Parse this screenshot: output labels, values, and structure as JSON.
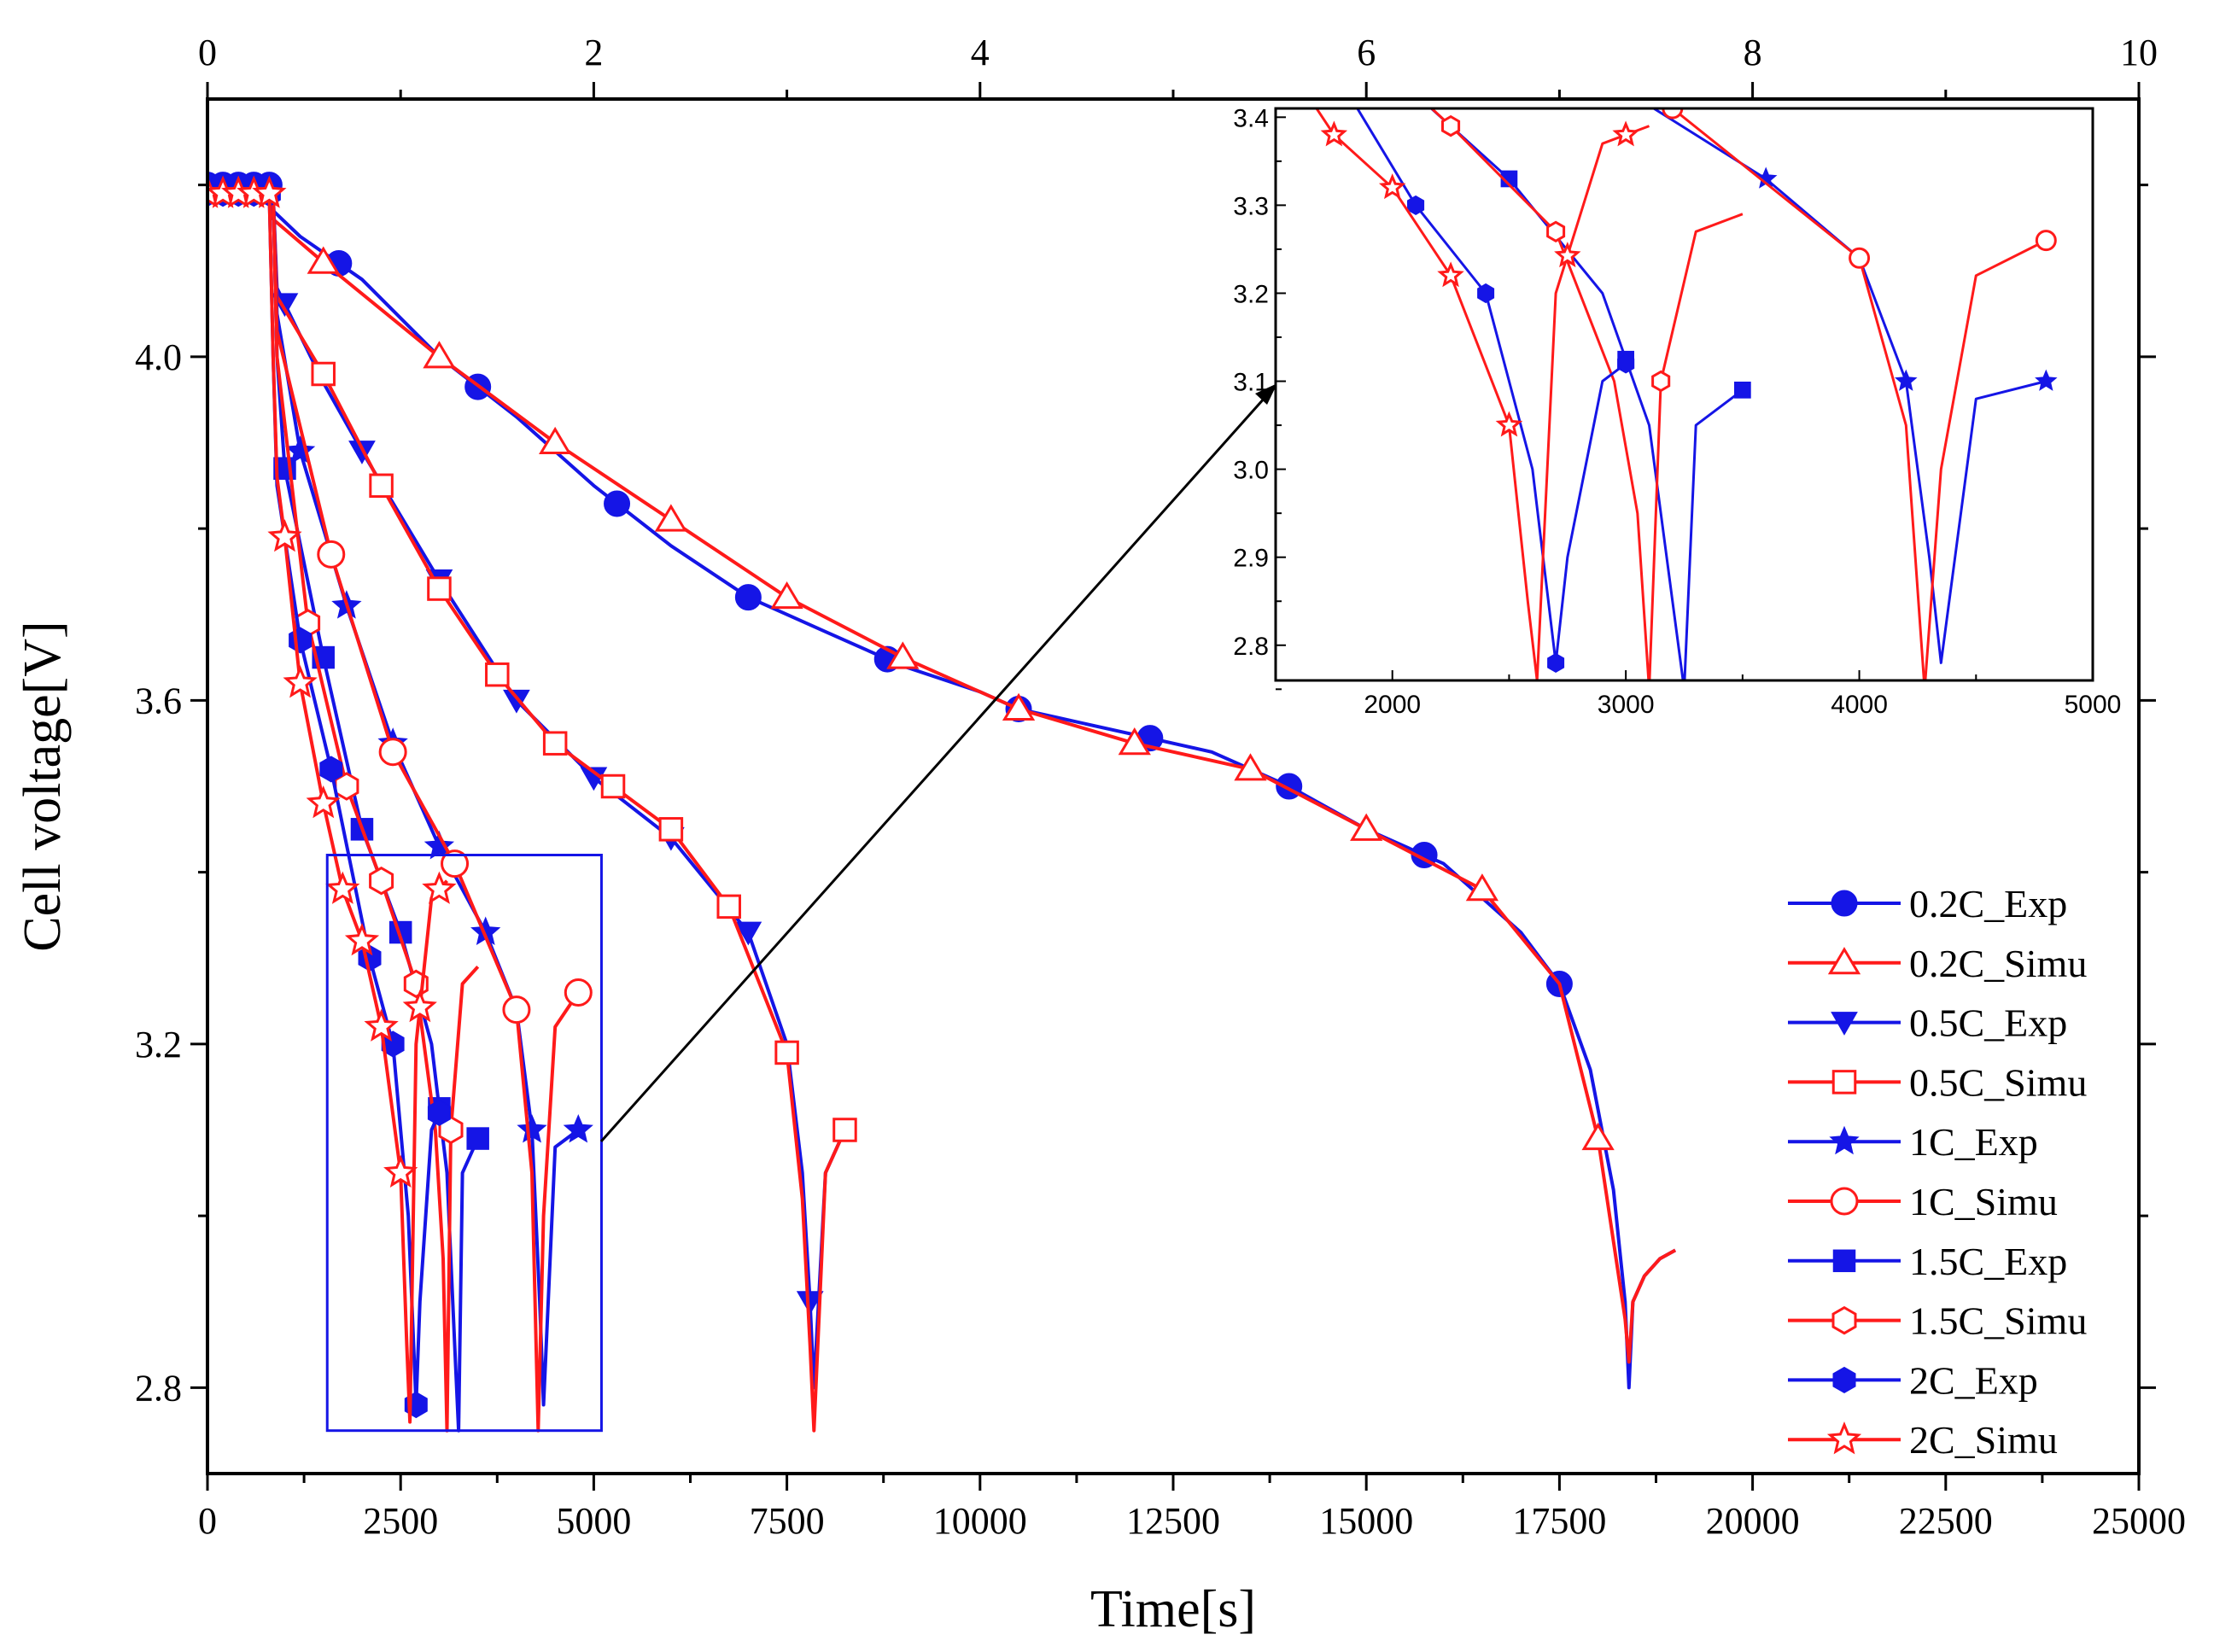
{
  "chart_data": {
    "type": "line",
    "title": "",
    "xlabel": "Time[s]",
    "ylabel": "Cell voltage[V]",
    "xlim": [
      0,
      25000
    ],
    "ylim": [
      2.7,
      4.3
    ],
    "x_ticks": [
      0,
      2500,
      5000,
      7500,
      10000,
      12500,
      15000,
      17500,
      20000,
      22500,
      25000
    ],
    "y_ticks": [
      2.8,
      3.2,
      3.6,
      4.0
    ],
    "top_axis": {
      "range": [
        0,
        10
      ],
      "ticks": [
        0,
        2,
        4,
        6,
        8,
        10
      ]
    },
    "legend_position": "right",
    "series": [
      {
        "name": "0.2C_Exp",
        "color": "#1515e6",
        "marker": "filled-circle",
        "x": [
          0,
          200,
          400,
          600,
          800,
          850,
          1200,
          2000,
          3000,
          4000,
          5000,
          6000,
          7000,
          8000,
          9000,
          10000,
          10500,
          11000,
          12000,
          13000,
          14000,
          15000,
          16000,
          16500,
          17000,
          17500,
          17900,
          18200,
          18350,
          18400,
          18450,
          18600,
          18800,
          19000
        ],
        "y": [
          4.2,
          4.2,
          4.2,
          4.2,
          4.2,
          4.17,
          4.14,
          4.09,
          4.0,
          3.93,
          3.85,
          3.78,
          3.72,
          3.68,
          3.64,
          3.61,
          3.59,
          3.58,
          3.56,
          3.54,
          3.5,
          3.45,
          3.41,
          3.37,
          3.33,
          3.27,
          3.17,
          3.03,
          2.9,
          2.8,
          2.9,
          2.93,
          2.95,
          2.96
        ],
        "markers_x": [
          0,
          200,
          400,
          600,
          800,
          1700,
          3500,
          5300,
          7000,
          8800,
          10500,
          12200,
          14000,
          15750,
          17500
        ]
      },
      {
        "name": "0.2C_Simu",
        "color": "#ff1a1a",
        "marker": "open-triangle",
        "x": [
          0,
          200,
          400,
          600,
          800,
          850,
          1500,
          3000,
          4500,
          6000,
          7500,
          9000,
          10500,
          12000,
          13500,
          15000,
          16500,
          17500,
          18000,
          18200,
          18350,
          18400,
          18450,
          18600,
          18800,
          19000
        ],
        "y": [
          4.19,
          4.19,
          4.19,
          4.19,
          4.19,
          4.16,
          4.11,
          4.0,
          3.9,
          3.81,
          3.72,
          3.65,
          3.59,
          3.55,
          3.52,
          3.45,
          3.38,
          3.27,
          3.09,
          2.97,
          2.88,
          2.83,
          2.9,
          2.93,
          2.95,
          2.96
        ],
        "markers_x": [
          1500,
          3000,
          4500,
          6000,
          7500,
          9000,
          10500,
          12000,
          13500,
          15000,
          16500,
          18000
        ]
      },
      {
        "name": "0.5C_Exp",
        "color": "#1515e6",
        "marker": "filled-triangle-down",
        "x": [
          850,
          900,
          1500,
          2000,
          3000,
          3500,
          4000,
          5000,
          6000,
          7000,
          7500,
          7700,
          7800,
          7850,
          8000,
          8200
        ],
        "y": [
          4.19,
          4.08,
          3.97,
          3.89,
          3.74,
          3.67,
          3.6,
          3.51,
          3.44,
          3.33,
          3.2,
          3.05,
          2.9,
          2.8,
          3.05,
          3.09
        ],
        "markers_x": [
          1000,
          2000,
          3000,
          4000,
          5000,
          6000,
          7000,
          7800
        ]
      },
      {
        "name": "0.5C_Simu",
        "color": "#ff1a1a",
        "marker": "open-square",
        "x": [
          850,
          900,
          1500,
          2250,
          3000,
          3750,
          4500,
          5250,
          6000,
          6750,
          7500,
          7700,
          7800,
          7850,
          8000,
          8250
        ],
        "y": [
          4.19,
          4.07,
          3.98,
          3.85,
          3.73,
          3.63,
          3.55,
          3.5,
          3.45,
          3.36,
          3.19,
          3.02,
          2.85,
          2.75,
          3.05,
          3.1
        ],
        "markers_x": [
          1500,
          2250,
          3000,
          3750,
          4500,
          5250,
          6000,
          6750,
          7500,
          8250
        ]
      },
      {
        "name": "1C_Exp",
        "color": "#1515e6",
        "marker": "filled-star",
        "x": [
          850,
          900,
          1200,
          1800,
          2400,
          3000,
          3600,
          4000,
          4200,
          4300,
          4350,
          4500,
          4800
        ],
        "y": [
          4.19,
          4.05,
          3.89,
          3.71,
          3.55,
          3.43,
          3.33,
          3.24,
          3.1,
          2.9,
          2.78,
          3.08,
          3.1
        ],
        "markers_x": [
          1200,
          1800,
          2400,
          3000,
          3600,
          4200,
          4800
        ]
      },
      {
        "name": "1C_Simu",
        "color": "#ff1a1a",
        "marker": "open-circle",
        "x": [
          850,
          900,
          1600,
          2400,
          3200,
          4000,
          4200,
          4280,
          4350,
          4500,
          4800
        ],
        "y": [
          4.19,
          4.03,
          3.77,
          3.54,
          3.41,
          3.24,
          3.05,
          2.75,
          3.0,
          3.22,
          3.26
        ],
        "markers_x": [
          1600,
          2400,
          3200,
          4000,
          4800
        ]
      },
      {
        "name": "1.5C_Exp",
        "color": "#1515e6",
        "marker": "filled-square",
        "x": [
          850,
          900,
          1000,
          1500,
          2000,
          2500,
          2900,
          3100,
          3200,
          3250,
          3300,
          3500
        ],
        "y": [
          4.19,
          4.0,
          3.87,
          3.65,
          3.45,
          3.33,
          3.2,
          3.05,
          2.85,
          2.75,
          3.05,
          3.09
        ],
        "markers_x": [
          1000,
          1500,
          2000,
          2500,
          3000,
          3500
        ]
      },
      {
        "name": "1.5C_Simu",
        "color": "#ff1a1a",
        "marker": "open-hexagon",
        "x": [
          850,
          900,
          1300,
          1800,
          2250,
          2700,
          2950,
          3050,
          3100,
          3150,
          3300,
          3500
        ],
        "y": [
          4.19,
          4.0,
          3.69,
          3.5,
          3.39,
          3.27,
          3.1,
          2.95,
          2.75,
          3.1,
          3.27,
          3.29
        ],
        "markers_x": [
          1300,
          1800,
          2250,
          2700,
          3150
        ]
      },
      {
        "name": "2C_Exp",
        "color": "#1515e6",
        "marker": "filled-hexagon",
        "x": [
          0,
          200,
          400,
          600,
          800,
          850,
          900,
          1200,
          1600,
          2100,
          2400,
          2600,
          2700,
          2750,
          2900,
          3000
        ],
        "y": [
          4.19,
          4.19,
          4.19,
          4.19,
          4.19,
          4.0,
          3.85,
          3.67,
          3.52,
          3.3,
          3.2,
          3.0,
          2.78,
          2.9,
          3.1,
          3.12
        ],
        "markers_x": [
          0,
          200,
          400,
          600,
          800,
          1200,
          1600,
          2100,
          2400,
          2700,
          3000
        ]
      },
      {
        "name": "2C_Simu",
        "color": "#ff1a1a",
        "marker": "open-star",
        "x": [
          0,
          200,
          400,
          600,
          800,
          850,
          900,
          1000,
          1200,
          1500,
          1750,
          2000,
          2250,
          2500,
          2580,
          2620,
          2700,
          2900,
          3100
        ],
        "y": [
          4.19,
          4.19,
          4.19,
          4.19,
          4.19,
          4.0,
          3.86,
          3.79,
          3.62,
          3.48,
          3.38,
          3.32,
          3.22,
          3.05,
          2.85,
          2.76,
          3.2,
          3.37,
          3.39
        ],
        "markers_x": [
          0,
          200,
          400,
          600,
          800,
          1000,
          1200,
          1500,
          1750,
          2000,
          2250,
          2500,
          2750,
          3000
        ]
      }
    ],
    "inset": {
      "xlim": [
        1500,
        5000
      ],
      "ylim": [
        2.76,
        3.41
      ],
      "x_ticks": [
        2000,
        3000,
        4000,
        5000
      ],
      "y_ticks": [
        2.8,
        2.9,
        3.0,
        3.1,
        3.2,
        3.3,
        3.4
      ],
      "source_box": {
        "xlim": [
          1550,
          5100
        ],
        "ylim": [
          2.75,
          3.42
        ]
      }
    }
  }
}
